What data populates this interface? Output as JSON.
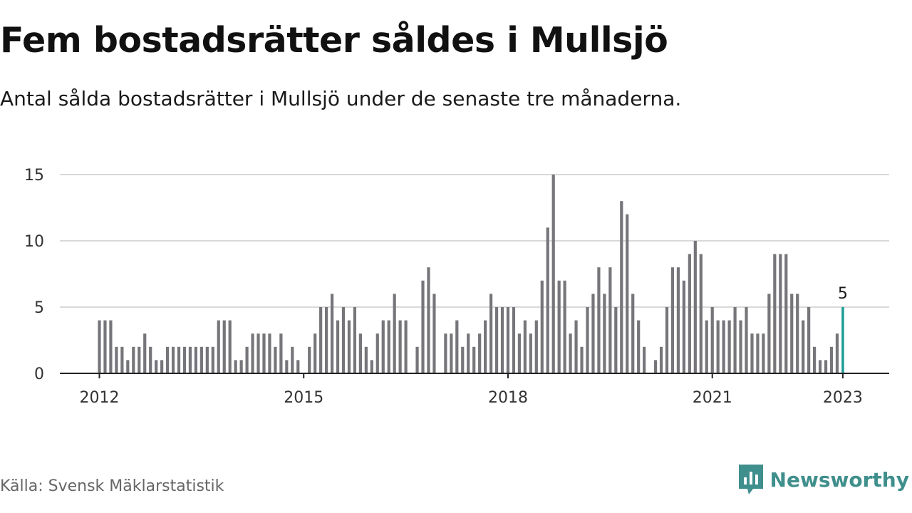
{
  "title": "Fem bostadsrätter såldes i Mullsjö",
  "subtitle": "Antal sålda bostadsrätter i Mullsjö under de senaste tre månaderna.",
  "source": "Källa: Svensk Mäklarstatistik",
  "brand": {
    "name": "Newsworthy",
    "icon": "newsworthy-logo-icon",
    "color": "#3f8f8c"
  },
  "chart_data": {
    "type": "bar",
    "title": "Fem bostadsrätter såldes i Mullsjö",
    "xlabel": "",
    "ylabel": "",
    "ylim": [
      0,
      15
    ],
    "yticks": [
      0,
      5,
      10,
      15
    ],
    "xticks": [
      "2012",
      "2015",
      "2018",
      "2021",
      "2023"
    ],
    "grid": true,
    "bar_color": "#76767a",
    "highlight_color": "#1a9c95",
    "highlight_label": "5",
    "series": [
      {
        "values": [
          4,
          4,
          4,
          2,
          2,
          1,
          2,
          2,
          3,
          2,
          1,
          1,
          2,
          2,
          2,
          2,
          2,
          2,
          2,
          2,
          2,
          4,
          4,
          4,
          1,
          1,
          2,
          3,
          3,
          3,
          3,
          2,
          3,
          1,
          2,
          1,
          0,
          2,
          3,
          5,
          5,
          6,
          4,
          5,
          4,
          5,
          3,
          2,
          1,
          3,
          4,
          4,
          6,
          4,
          4,
          0,
          2,
          7,
          8,
          6,
          0,
          3,
          3,
          4,
          2,
          3,
          2,
          3,
          4,
          6,
          5,
          5,
          5,
          5,
          3,
          4,
          3,
          4,
          7,
          11,
          15,
          7,
          7,
          3,
          4,
          2,
          5,
          6,
          8,
          6,
          8,
          5,
          13,
          12,
          6,
          4,
          2,
          0,
          1,
          2,
          5,
          8,
          8,
          7,
          9,
          10,
          9,
          4,
          5,
          4,
          4,
          4,
          5,
          4,
          5,
          3,
          3,
          3,
          6,
          9,
          9,
          9,
          6,
          6,
          4,
          5,
          2,
          1,
          1,
          2,
          3,
          5
        ]
      }
    ]
  }
}
